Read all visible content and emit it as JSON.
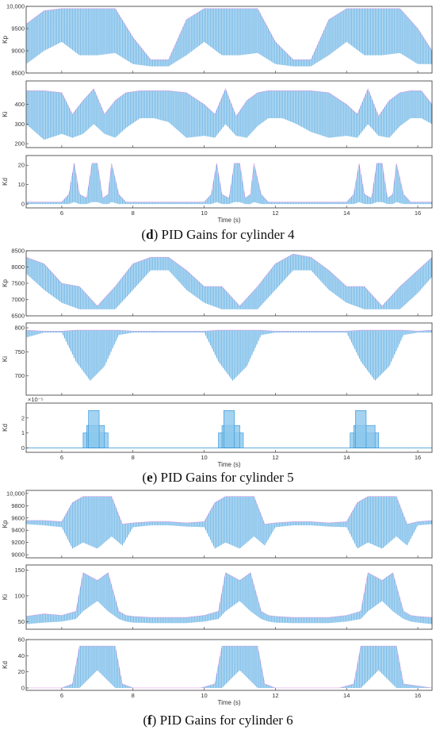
{
  "colors": {
    "fill": "#8cc8ec",
    "line": "#2b8fd8",
    "accent": "#d86fd8",
    "axis": "#333333"
  },
  "captions": [
    {
      "letter": "d",
      "text": " PID Gains for cylinder 4"
    },
    {
      "letter": "e",
      "text": " PID Gains for cylinder 5"
    },
    {
      "letter": "f",
      "text": " PID Gains for cylinder 6"
    }
  ],
  "chart_data": [
    {
      "type": "area",
      "group": "d",
      "ylabel": "Kp",
      "ylim": [
        8500,
        10000
      ],
      "yticks": [
        8500,
        9000,
        9500,
        10000
      ],
      "ytick_labels": [
        "8500",
        "9000",
        "9500",
        "10,000"
      ],
      "xlim": [
        5,
        16.4
      ],
      "xticks": [
        6,
        8,
        10,
        12,
        14,
        16
      ],
      "xlabel": "",
      "x": [
        5,
        5.5,
        6,
        6.5,
        7,
        7.5,
        8,
        8.5,
        9,
        9.5,
        10,
        10.5,
        11,
        11.5,
        12,
        12.5,
        13,
        13.5,
        14,
        14.5,
        15,
        15.5,
        16,
        16.4
      ],
      "upper": [
        9600,
        9900,
        9950,
        9950,
        9950,
        9950,
        9300,
        8800,
        8800,
        9700,
        9950,
        9950,
        9950,
        9950,
        9200,
        8800,
        8800,
        9700,
        9950,
        9950,
        9950,
        9950,
        9500,
        9000
      ],
      "lower": [
        8700,
        9000,
        9200,
        8900,
        8900,
        8950,
        8700,
        8650,
        8650,
        8900,
        9200,
        8900,
        8900,
        8950,
        8700,
        8650,
        8650,
        8900,
        9200,
        8900,
        8900,
        8950,
        8700,
        8700
      ]
    },
    {
      "type": "area",
      "group": "d",
      "ylabel": "Ki",
      "ylim": [
        180,
        520
      ],
      "yticks": [
        200,
        300,
        400
      ],
      "ytick_labels": [
        "200",
        "300",
        "400"
      ],
      "xlim": [
        5,
        16.4
      ],
      "xticks": [
        6,
        8,
        10,
        12,
        14,
        16
      ],
      "xlabel": "",
      "x": [
        5,
        5.5,
        6,
        6.3,
        6.6,
        6.9,
        7.2,
        7.5,
        7.8,
        8.2,
        8.6,
        9,
        9.5,
        10,
        10.3,
        10.6,
        10.9,
        11.2,
        11.5,
        11.8,
        12.2,
        12.6,
        13,
        13.5,
        14,
        14.3,
        14.6,
        14.9,
        15.2,
        15.5,
        15.8,
        16.1,
        16.4
      ],
      "upper": [
        470,
        470,
        460,
        350,
        420,
        480,
        350,
        420,
        460,
        470,
        470,
        470,
        460,
        400,
        350,
        480,
        340,
        420,
        460,
        470,
        470,
        470,
        470,
        460,
        400,
        350,
        480,
        340,
        420,
        460,
        470,
        470,
        400
      ],
      "lower": [
        300,
        220,
        250,
        230,
        250,
        300,
        250,
        230,
        280,
        330,
        330,
        310,
        230,
        240,
        230,
        300,
        240,
        230,
        290,
        330,
        330,
        300,
        260,
        230,
        240,
        230,
        300,
        240,
        230,
        290,
        330,
        330,
        300
      ]
    },
    {
      "type": "area",
      "group": "d",
      "ylabel": "Kd",
      "ylim": [
        -2,
        25
      ],
      "yticks": [
        0,
        10,
        20
      ],
      "ytick_labels": [
        "0",
        "10",
        "20"
      ],
      "xlim": [
        5,
        16.4
      ],
      "xticks": [
        6,
        8,
        10,
        12,
        14,
        16
      ],
      "xlabel": "Time (s)",
      "x": [
        5,
        6,
        6.2,
        6.35,
        6.5,
        6.7,
        6.85,
        7.0,
        7.15,
        7.3,
        7.4,
        7.6,
        7.8,
        8.0,
        9.6,
        10.0,
        10.2,
        10.35,
        10.5,
        10.7,
        10.85,
        11.0,
        11.15,
        11.3,
        11.4,
        11.6,
        11.8,
        12.0,
        13.6,
        14.0,
        14.2,
        14.35,
        14.5,
        14.7,
        14.85,
        15.0,
        15.15,
        15.3,
        15.4,
        15.6,
        15.8,
        16.4
      ],
      "upper": [
        1,
        1,
        5,
        21,
        5,
        3,
        21,
        21,
        3,
        5,
        21,
        5,
        1,
        1,
        1,
        1,
        5,
        21,
        5,
        3,
        21,
        21,
        3,
        5,
        21,
        5,
        1,
        1,
        1,
        1,
        5,
        21,
        5,
        3,
        21,
        21,
        3,
        5,
        21,
        5,
        1,
        1
      ],
      "lower": [
        0,
        0,
        0,
        1,
        0,
        0,
        1,
        1,
        0,
        0,
        1,
        0,
        0,
        0,
        0,
        0,
        0,
        1,
        0,
        0,
        1,
        1,
        0,
        0,
        1,
        0,
        0,
        0,
        0,
        0,
        0,
        1,
        0,
        0,
        1,
        1,
        0,
        0,
        1,
        0,
        0,
        0
      ]
    },
    {
      "type": "area",
      "group": "e",
      "ylabel": "Kp",
      "ylim": [
        6500,
        8500
      ],
      "yticks": [
        6500,
        7000,
        7500,
        8000,
        8500
      ],
      "ytick_labels": [
        "6500",
        "7000",
        "7500",
        "8000",
        "8500"
      ],
      "xlim": [
        5,
        16.4
      ],
      "xticks": [
        6,
        8,
        10,
        12,
        14,
        16
      ],
      "xlabel": "",
      "x": [
        5,
        5.5,
        6,
        6.5,
        7,
        7.5,
        8,
        8.5,
        9,
        9.5,
        10,
        10.5,
        11,
        11.5,
        12,
        12.5,
        13,
        13.5,
        14,
        14.5,
        15,
        15.5,
        16,
        16.4
      ],
      "upper": [
        8300,
        8100,
        7500,
        7400,
        6800,
        7400,
        8100,
        8300,
        8300,
        7900,
        7400,
        7400,
        6800,
        7400,
        8100,
        8400,
        8300,
        7900,
        7400,
        7400,
        6800,
        7400,
        7900,
        8300
      ],
      "lower": [
        7800,
        7300,
        6900,
        6700,
        6700,
        6700,
        7300,
        7900,
        7900,
        7300,
        6900,
        6700,
        6700,
        6700,
        7300,
        7900,
        7900,
        7300,
        6900,
        6700,
        6700,
        6700,
        7200,
        7700
      ]
    },
    {
      "type": "area",
      "group": "e",
      "ylabel": "Ki",
      "ylim": [
        660,
        810
      ],
      "yticks": [
        700,
        750,
        800
      ],
      "ytick_labels": [
        "700",
        "750",
        "800"
      ],
      "xlim": [
        5,
        16.4
      ],
      "xticks": [
        6,
        8,
        10,
        12,
        14,
        16
      ],
      "xlabel": "",
      "x": [
        5,
        5.5,
        6,
        6.4,
        6.8,
        7.2,
        7.6,
        8,
        8.5,
        9,
        9.5,
        10,
        10.4,
        10.8,
        11.2,
        11.6,
        12,
        12.5,
        13,
        13.5,
        14,
        14.4,
        14.8,
        15.2,
        15.6,
        16,
        16.4
      ],
      "upper": [
        795,
        793,
        793,
        795,
        795,
        795,
        795,
        793,
        793,
        793,
        793,
        793,
        795,
        795,
        795,
        795,
        793,
        793,
        793,
        793,
        793,
        795,
        795,
        795,
        795,
        793,
        795
      ],
      "lower": [
        780,
        790,
        790,
        730,
        690,
        720,
        785,
        790,
        790,
        790,
        790,
        790,
        730,
        690,
        720,
        785,
        790,
        790,
        790,
        790,
        790,
        730,
        690,
        720,
        785,
        790,
        790
      ]
    },
    {
      "type": "step",
      "group": "e",
      "ylabel": "Kd",
      "exponent_label": "×10⁻⁵",
      "ylim": [
        -0.3,
        3
      ],
      "yticks": [
        0,
        1,
        2
      ],
      "ytick_labels": [
        "0",
        "1",
        "2"
      ],
      "xlim": [
        5,
        16.4
      ],
      "xticks": [
        6,
        8,
        10,
        12,
        14,
        16
      ],
      "xlabel": "Time (s)",
      "segments": [
        {
          "x0": 6.6,
          "x1": 7.3,
          "y": 1
        },
        {
          "x0": 6.7,
          "x1": 7.2,
          "y": 1.5
        },
        {
          "x0": 6.75,
          "x1": 7.05,
          "y": 2.5
        },
        {
          "x0": 10.4,
          "x1": 11.1,
          "y": 1
        },
        {
          "x0": 10.5,
          "x1": 11.0,
          "y": 1.5
        },
        {
          "x0": 10.55,
          "x1": 10.85,
          "y": 2.5
        },
        {
          "x0": 14.1,
          "x1": 14.9,
          "y": 1
        },
        {
          "x0": 14.2,
          "x1": 14.8,
          "y": 1.5
        },
        {
          "x0": 14.25,
          "x1": 14.55,
          "y": 2.5
        }
      ]
    },
    {
      "type": "area",
      "group": "f",
      "ylabel": "Kp",
      "ylim": [
        8950,
        10050
      ],
      "yticks": [
        9000,
        9200,
        9400,
        9600,
        9800,
        10000
      ],
      "ytick_labels": [
        "9000",
        "9200",
        "9400",
        "9600",
        "9800",
        "10,000"
      ],
      "xlim": [
        5,
        16.4
      ],
      "xticks": [
        6,
        8,
        10,
        12,
        14,
        16
      ],
      "xlabel": "",
      "x": [
        5,
        5.5,
        6,
        6.3,
        6.6,
        7,
        7.4,
        7.7,
        8,
        8.5,
        9,
        9.5,
        10,
        10.3,
        10.6,
        11,
        11.4,
        11.7,
        12,
        12.5,
        13,
        13.5,
        14,
        14.3,
        14.6,
        15,
        15.4,
        15.7,
        16,
        16.4
      ],
      "upper": [
        9560,
        9560,
        9540,
        9850,
        9950,
        9950,
        9950,
        9500,
        9520,
        9540,
        9540,
        9520,
        9540,
        9850,
        9950,
        9950,
        9950,
        9500,
        9520,
        9540,
        9540,
        9520,
        9540,
        9850,
        9950,
        9950,
        9950,
        9500,
        9540,
        9560
      ],
      "lower": [
        9500,
        9480,
        9450,
        9100,
        9200,
        9100,
        9300,
        9150,
        9450,
        9480,
        9480,
        9460,
        9450,
        9100,
        9200,
        9100,
        9300,
        9150,
        9450,
        9480,
        9480,
        9460,
        9450,
        9100,
        9200,
        9100,
        9300,
        9150,
        9480,
        9500
      ]
    },
    {
      "type": "area",
      "group": "f",
      "ylabel": "Ki",
      "ylim": [
        35,
        160
      ],
      "yticks": [
        50,
        100,
        150
      ],
      "ytick_labels": [
        "50",
        "100",
        "150"
      ],
      "xlim": [
        5,
        16.4
      ],
      "xticks": [
        6,
        8,
        10,
        12,
        14,
        16
      ],
      "xlabel": "",
      "x": [
        5,
        5.5,
        6,
        6.4,
        6.6,
        7,
        7.3,
        7.6,
        7.8,
        8,
        8.5,
        9,
        9.5,
        10,
        10.4,
        10.6,
        11,
        11.3,
        11.6,
        11.8,
        12,
        12.5,
        13,
        13.5,
        14,
        14.4,
        14.6,
        15,
        15.3,
        15.6,
        15.8,
        16,
        16.4
      ],
      "upper": [
        60,
        65,
        62,
        70,
        145,
        130,
        145,
        70,
        62,
        60,
        58,
        58,
        58,
        62,
        70,
        145,
        130,
        145,
        70,
        62,
        60,
        58,
        58,
        58,
        62,
        70,
        145,
        130,
        145,
        70,
        62,
        60,
        58
      ],
      "lower": [
        45,
        48,
        50,
        55,
        70,
        90,
        70,
        55,
        50,
        48,
        47,
        47,
        47,
        50,
        55,
        70,
        90,
        70,
        55,
        50,
        48,
        47,
        47,
        47,
        50,
        55,
        70,
        90,
        70,
        55,
        50,
        48,
        45
      ]
    },
    {
      "type": "area",
      "group": "f",
      "ylabel": "Kd",
      "ylim": [
        -3,
        60
      ],
      "yticks": [
        0,
        20,
        40,
        60
      ],
      "ytick_labels": [
        "0",
        "20",
        "40",
        "60"
      ],
      "xlim": [
        5,
        16.4
      ],
      "xticks": [
        6,
        8,
        10,
        12,
        14,
        16
      ],
      "xlabel": "Time (s)",
      "x": [
        5,
        6,
        6.3,
        6.5,
        7,
        7.5,
        7.7,
        8,
        9.9,
        10.3,
        10.5,
        11,
        11.5,
        11.7,
        12,
        13.8,
        14.2,
        14.4,
        14.9,
        15.4,
        15.6,
        16.4
      ],
      "upper": [
        0,
        0,
        5,
        52,
        52,
        52,
        5,
        0,
        0,
        5,
        52,
        52,
        52,
        5,
        0,
        0,
        5,
        52,
        52,
        52,
        5,
        0
      ],
      "lower": [
        0,
        0,
        0,
        0,
        22,
        0,
        0,
        0,
        0,
        0,
        0,
        22,
        0,
        0,
        0,
        0,
        0,
        0,
        22,
        0,
        0,
        0
      ]
    }
  ]
}
